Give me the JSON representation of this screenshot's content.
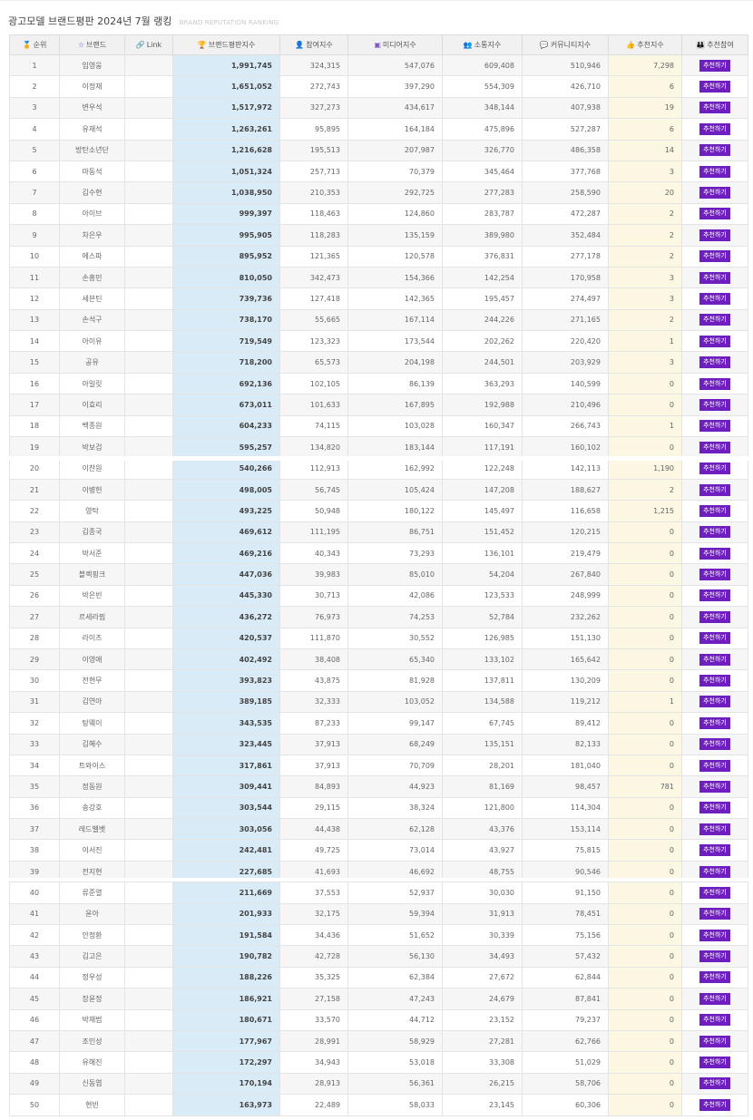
{
  "header": {
    "title": "광고모델 브랜드평판 2024년 7월 랭킹",
    "subtitle": "BRAND REPUTATION RANKING"
  },
  "table": {
    "columns": [
      {
        "label": "순위",
        "icon": "medal-icon",
        "glyph": "🏅"
      },
      {
        "label": "브랜드",
        "icon": "star-icon",
        "glyph": "☆"
      },
      {
        "label": "Link",
        "icon": "link-icon",
        "glyph": "🔗"
      },
      {
        "label": "브랜드평판지수",
        "icon": "trophy-icon",
        "glyph": "🏆"
      },
      {
        "label": "참여지수",
        "icon": "person-icon",
        "glyph": "👤"
      },
      {
        "label": "미디어지수",
        "icon": "media-icon",
        "glyph": "▣"
      },
      {
        "label": "소통지수",
        "icon": "users-icon",
        "glyph": "👥"
      },
      {
        "label": "커뮤니티지수",
        "icon": "comment-icon",
        "glyph": "💬"
      },
      {
        "label": "추천지수",
        "icon": "thumbs-up-icon",
        "glyph": "👍"
      },
      {
        "label": "추천참여",
        "icon": "group-icon",
        "glyph": "👪"
      }
    ],
    "button_label": "추천하기",
    "rows": [
      {
        "rank": "1",
        "brand": "임영웅",
        "brp": "1,991,745",
        "participation": "324,315",
        "media": "547,076",
        "communication": "609,408",
        "community": "510,946",
        "recommend": "7,298"
      },
      {
        "rank": "2",
        "brand": "이정재",
        "brp": "1,651,052",
        "participation": "272,743",
        "media": "397,290",
        "communication": "554,309",
        "community": "426,710",
        "recommend": "6"
      },
      {
        "rank": "3",
        "brand": "변우석",
        "brp": "1,517,972",
        "participation": "327,273",
        "media": "434,617",
        "communication": "348,144",
        "community": "407,938",
        "recommend": "19"
      },
      {
        "rank": "4",
        "brand": "유재석",
        "brp": "1,263,261",
        "participation": "95,895",
        "media": "164,184",
        "communication": "475,896",
        "community": "527,287",
        "recommend": "6"
      },
      {
        "rank": "5",
        "brand": "방탄소년단",
        "brp": "1,216,628",
        "participation": "195,513",
        "media": "207,987",
        "communication": "326,770",
        "community": "486,358",
        "recommend": "14"
      },
      {
        "rank": "6",
        "brand": "마동석",
        "brp": "1,051,324",
        "participation": "257,713",
        "media": "70,379",
        "communication": "345,464",
        "community": "377,768",
        "recommend": "3"
      },
      {
        "rank": "7",
        "brand": "김수현",
        "brp": "1,038,950",
        "participation": "210,353",
        "media": "292,725",
        "communication": "277,283",
        "community": "258,590",
        "recommend": "20"
      },
      {
        "rank": "8",
        "brand": "아이브",
        "brp": "999,397",
        "participation": "118,463",
        "media": "124,860",
        "communication": "283,787",
        "community": "472,287",
        "recommend": "2"
      },
      {
        "rank": "9",
        "brand": "차은우",
        "brp": "995,905",
        "participation": "118,283",
        "media": "135,159",
        "communication": "389,980",
        "community": "352,484",
        "recommend": "2"
      },
      {
        "rank": "10",
        "brand": "에스파",
        "brp": "895,952",
        "participation": "121,365",
        "media": "120,578",
        "communication": "376,831",
        "community": "277,178",
        "recommend": "2"
      },
      {
        "rank": "11",
        "brand": "손흥민",
        "brp": "810,050",
        "participation": "342,473",
        "media": "154,366",
        "communication": "142,254",
        "community": "170,958",
        "recommend": "3"
      },
      {
        "rank": "12",
        "brand": "세븐틴",
        "brp": "739,736",
        "participation": "127,418",
        "media": "142,365",
        "communication": "195,457",
        "community": "274,497",
        "recommend": "3"
      },
      {
        "rank": "13",
        "brand": "손석구",
        "brp": "738,170",
        "participation": "55,665",
        "media": "167,114",
        "communication": "244,226",
        "community": "271,165",
        "recommend": "2"
      },
      {
        "rank": "14",
        "brand": "아이유",
        "brp": "719,549",
        "participation": "123,323",
        "media": "173,544",
        "communication": "202,262",
        "community": "220,420",
        "recommend": "1"
      },
      {
        "rank": "15",
        "brand": "공유",
        "brp": "718,200",
        "participation": "65,573",
        "media": "204,198",
        "communication": "244,501",
        "community": "203,929",
        "recommend": "3"
      },
      {
        "rank": "16",
        "brand": "아일릿",
        "brp": "692,136",
        "participation": "102,105",
        "media": "86,139",
        "communication": "363,293",
        "community": "140,599",
        "recommend": "0"
      },
      {
        "rank": "17",
        "brand": "이효리",
        "brp": "673,011",
        "participation": "101,633",
        "media": "167,895",
        "communication": "192,988",
        "community": "210,496",
        "recommend": "0"
      },
      {
        "rank": "18",
        "brand": "백종원",
        "brp": "604,233",
        "participation": "74,115",
        "media": "103,028",
        "communication": "160,347",
        "community": "266,743",
        "recommend": "1"
      },
      {
        "rank": "19",
        "brand": "박보검",
        "brp": "595,257",
        "participation": "134,820",
        "media": "183,144",
        "communication": "117,191",
        "community": "160,102",
        "recommend": "0"
      },
      {
        "rank": "20",
        "brand": "이찬원",
        "brp": "540,266",
        "participation": "112,913",
        "media": "162,992",
        "communication": "122,248",
        "community": "142,113",
        "recommend": "1,190"
      },
      {
        "rank": "21",
        "brand": "이병헌",
        "brp": "498,005",
        "participation": "56,745",
        "media": "105,424",
        "communication": "147,208",
        "community": "188,627",
        "recommend": "2"
      },
      {
        "rank": "22",
        "brand": "영탁",
        "brp": "493,225",
        "participation": "50,948",
        "media": "180,122",
        "communication": "145,497",
        "community": "116,658",
        "recommend": "1,215"
      },
      {
        "rank": "23",
        "brand": "김종국",
        "brp": "469,612",
        "participation": "111,195",
        "media": "86,751",
        "communication": "151,452",
        "community": "120,215",
        "recommend": "0"
      },
      {
        "rank": "24",
        "brand": "박서준",
        "brp": "469,216",
        "participation": "40,343",
        "media": "73,293",
        "communication": "136,101",
        "community": "219,479",
        "recommend": "0"
      },
      {
        "rank": "25",
        "brand": "블랙핑크",
        "brp": "447,036",
        "participation": "39,983",
        "media": "85,010",
        "communication": "54,204",
        "community": "267,840",
        "recommend": "0"
      },
      {
        "rank": "26",
        "brand": "박은빈",
        "brp": "445,330",
        "participation": "30,713",
        "media": "42,086",
        "communication": "123,533",
        "community": "248,999",
        "recommend": "0"
      },
      {
        "rank": "27",
        "brand": "르세라핌",
        "brp": "436,272",
        "participation": "76,973",
        "media": "74,253",
        "communication": "52,784",
        "community": "232,262",
        "recommend": "0"
      },
      {
        "rank": "28",
        "brand": "라이즈",
        "brp": "420,537",
        "participation": "111,870",
        "media": "30,552",
        "communication": "126,985",
        "community": "151,130",
        "recommend": "0"
      },
      {
        "rank": "29",
        "brand": "이영애",
        "brp": "402,492",
        "participation": "38,408",
        "media": "65,340",
        "communication": "133,102",
        "community": "165,642",
        "recommend": "0"
      },
      {
        "rank": "30",
        "brand": "전현무",
        "brp": "393,823",
        "participation": "43,875",
        "media": "81,928",
        "communication": "137,811",
        "community": "130,209",
        "recommend": "0"
      },
      {
        "rank": "31",
        "brand": "김연아",
        "brp": "389,185",
        "participation": "32,333",
        "media": "103,052",
        "communication": "134,588",
        "community": "119,212",
        "recommend": "1"
      },
      {
        "rank": "32",
        "brand": "탕웨이",
        "brp": "343,535",
        "participation": "87,233",
        "media": "99,147",
        "communication": "67,745",
        "community": "89,412",
        "recommend": "0"
      },
      {
        "rank": "33",
        "brand": "김혜수",
        "brp": "323,445",
        "participation": "37,913",
        "media": "68,249",
        "communication": "135,151",
        "community": "82,133",
        "recommend": "0"
      },
      {
        "rank": "34",
        "brand": "트와이스",
        "brp": "317,861",
        "participation": "37,913",
        "media": "70,709",
        "communication": "28,201",
        "community": "181,040",
        "recommend": "0"
      },
      {
        "rank": "35",
        "brand": "정동원",
        "brp": "309,441",
        "participation": "84,893",
        "media": "44,923",
        "communication": "81,169",
        "community": "98,457",
        "recommend": "781"
      },
      {
        "rank": "36",
        "brand": "송강호",
        "brp": "303,544",
        "participation": "29,115",
        "media": "38,324",
        "communication": "121,800",
        "community": "114,304",
        "recommend": "0"
      },
      {
        "rank": "37",
        "brand": "레드벨벳",
        "brp": "303,056",
        "participation": "44,438",
        "media": "62,128",
        "communication": "43,376",
        "community": "153,114",
        "recommend": "0"
      },
      {
        "rank": "38",
        "brand": "이서진",
        "brp": "242,481",
        "participation": "49,725",
        "media": "73,014",
        "communication": "43,927",
        "community": "75,815",
        "recommend": "0"
      },
      {
        "rank": "39",
        "brand": "전지현",
        "brp": "227,685",
        "participation": "41,693",
        "media": "46,692",
        "communication": "48,755",
        "community": "90,546",
        "recommend": "0"
      },
      {
        "rank": "40",
        "brand": "류준열",
        "brp": "211,669",
        "participation": "37,553",
        "media": "52,937",
        "communication": "30,030",
        "community": "91,150",
        "recommend": "0"
      },
      {
        "rank": "41",
        "brand": "윤아",
        "brp": "201,933",
        "participation": "32,175",
        "media": "59,394",
        "communication": "31,913",
        "community": "78,451",
        "recommend": "0"
      },
      {
        "rank": "42",
        "brand": "안정환",
        "brp": "191,584",
        "participation": "34,436",
        "media": "51,652",
        "communication": "30,339",
        "community": "75,156",
        "recommend": "0"
      },
      {
        "rank": "43",
        "brand": "김고은",
        "brp": "190,782",
        "participation": "42,728",
        "media": "56,130",
        "communication": "34,493",
        "community": "57,432",
        "recommend": "0"
      },
      {
        "rank": "44",
        "brand": "정우성",
        "brp": "188,226",
        "participation": "35,325",
        "media": "62,384",
        "communication": "27,672",
        "community": "62,844",
        "recommend": "0"
      },
      {
        "rank": "45",
        "brand": "장윤정",
        "brp": "186,921",
        "participation": "27,158",
        "media": "47,243",
        "communication": "24,679",
        "community": "87,841",
        "recommend": "0"
      },
      {
        "rank": "46",
        "brand": "박재범",
        "brp": "180,671",
        "participation": "33,570",
        "media": "44,712",
        "communication": "23,152",
        "community": "79,237",
        "recommend": "0"
      },
      {
        "rank": "47",
        "brand": "조인성",
        "brp": "177,967",
        "participation": "28,991",
        "media": "58,929",
        "communication": "27,281",
        "community": "62,766",
        "recommend": "0"
      },
      {
        "rank": "48",
        "brand": "유해진",
        "brp": "172,297",
        "participation": "34,943",
        "media": "53,018",
        "communication": "33,308",
        "community": "51,029",
        "recommend": "0"
      },
      {
        "rank": "49",
        "brand": "신동엽",
        "brp": "170,194",
        "participation": "28,913",
        "media": "56,361",
        "communication": "26,215",
        "community": "58,706",
        "recommend": "0"
      },
      {
        "rank": "50",
        "brand": "현빈",
        "brp": "163,973",
        "participation": "22,489",
        "media": "58,033",
        "communication": "23,145",
        "community": "60,306",
        "recommend": "0"
      }
    ]
  }
}
